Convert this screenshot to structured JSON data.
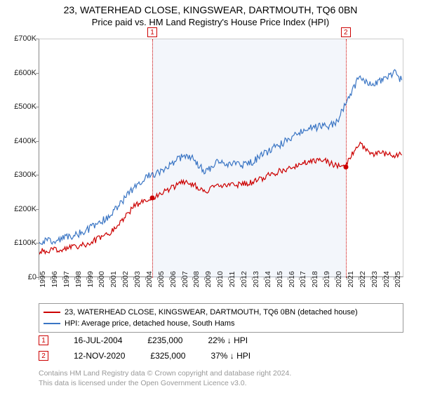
{
  "title": "23, WATERHEAD CLOSE, KINGSWEAR, DARTMOUTH, TQ6 0BN",
  "subtitle": "Price paid vs. HM Land Registry's House Price Index (HPI)",
  "chart": {
    "type": "line",
    "background_color": "#ffffff",
    "grid": false,
    "x": {
      "label": null,
      "min": 1995,
      "max": 2025.8,
      "ticks": [
        1995,
        1996,
        1997,
        1998,
        1999,
        2000,
        2001,
        2002,
        2003,
        2004,
        2005,
        2006,
        2007,
        2008,
        2009,
        2010,
        2011,
        2012,
        2013,
        2014,
        2015,
        2016,
        2017,
        2018,
        2019,
        2020,
        2021,
        2022,
        2023,
        2024,
        2025
      ],
      "tick_rotation_deg": -90,
      "tick_fontsize": 10.5
    },
    "y": {
      "label": null,
      "min": 0,
      "max": 700000,
      "ticks": [
        0,
        100000,
        200000,
        300000,
        400000,
        500000,
        600000,
        700000
      ],
      "tick_labels": [
        "£0",
        "£100K",
        "£200K",
        "£300K",
        "£400K",
        "£500K",
        "£600K",
        "£700K"
      ],
      "tick_fontsize": 11
    },
    "shade_range": {
      "from": 2004.54,
      "to": 2020.87,
      "color": "#e8eef7"
    },
    "series": [
      {
        "id": "property",
        "label": "23, WATERHEAD CLOSE, KINGSWEAR, DARTMOUTH, TQ6 0BN (detached house)",
        "color": "#cc0000",
        "line_width": 1.2,
        "x": [
          1995,
          1996,
          1997,
          1998,
          1999,
          2000,
          2001,
          2002,
          2003,
          2004,
          2004.54,
          2005,
          2006,
          2007,
          2008,
          2009,
          2010,
          2011,
          2012,
          2013,
          2014,
          2015,
          2016,
          2017,
          2018,
          2019,
          2020,
          2020.87,
          2021,
          2022,
          2023,
          2024,
          2025,
          2025.6
        ],
        "y": [
          78000,
          80000,
          85000,
          90000,
          100000,
          115000,
          135000,
          170000,
          210000,
          230000,
          235000,
          245000,
          260000,
          280000,
          275000,
          250000,
          275000,
          270000,
          275000,
          280000,
          295000,
          310000,
          320000,
          335000,
          340000,
          345000,
          330000,
          325000,
          340000,
          395000,
          360000,
          365000,
          360000,
          360000
        ]
      },
      {
        "id": "hpi",
        "label": "HPI: Average price, detached house, South Hams",
        "color": "#3a75c4",
        "line_width": 1.2,
        "x": [
          1995,
          1996,
          1997,
          1998,
          1999,
          2000,
          2001,
          2002,
          2003,
          2004,
          2005,
          2006,
          2007,
          2008,
          2009,
          2010,
          2011,
          2012,
          2013,
          2014,
          2015,
          2016,
          2017,
          2018,
          2019,
          2020,
          2021,
          2022,
          2023,
          2024,
          2025,
          2025.6
        ],
        "y": [
          105000,
          108000,
          115000,
          125000,
          140000,
          160000,
          185000,
          225000,
          265000,
          295000,
          310000,
          330000,
          355000,
          350000,
          310000,
          340000,
          335000,
          330000,
          340000,
          365000,
          385000,
          405000,
          430000,
          440000,
          445000,
          450000,
          520000,
          590000,
          565000,
          580000,
          600000,
          580000
        ]
      }
    ],
    "sale_markers": [
      {
        "n": "1",
        "x": 2004.54,
        "y": 235000,
        "line_color": "#cc0000"
      },
      {
        "n": "2",
        "x": 2020.87,
        "y": 325000,
        "line_color": "#cc0000"
      }
    ]
  },
  "legend": {
    "border_color": "#999999",
    "items": [
      {
        "color": "#cc0000",
        "text": "23, WATERHEAD CLOSE, KINGSWEAR, DARTMOUTH, TQ6 0BN (detached house)"
      },
      {
        "color": "#3a75c4",
        "text": "HPI: Average price, detached house, South Hams"
      }
    ]
  },
  "sales": [
    {
      "n": "1",
      "date": "16-JUL-2004",
      "price": "£235,000",
      "vs_hpi": "22% ↓ HPI"
    },
    {
      "n": "2",
      "date": "12-NOV-2020",
      "price": "£325,000",
      "vs_hpi": "37% ↓ HPI"
    }
  ],
  "attribution_line1": "Contains HM Land Registry data © Crown copyright and database right 2024.",
  "attribution_line2": "This data is licensed under the Open Government Licence v3.0.",
  "marker_box_color": "#cc0000"
}
